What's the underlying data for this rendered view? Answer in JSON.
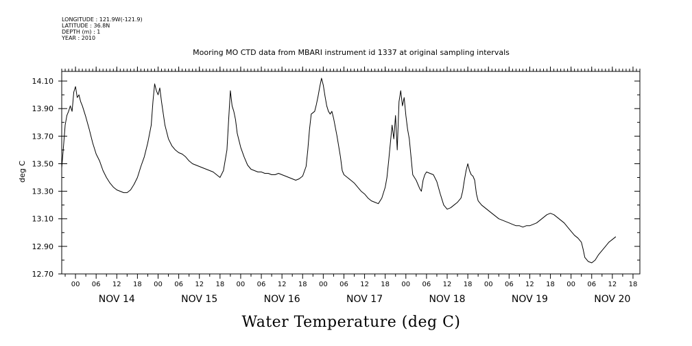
{
  "meta_lines": [
    "LONGITUDE : 121.9W(-121.9)",
    "LATITUDE : 36.8N",
    "DEPTH (m) : 1",
    "YEAR : 2010"
  ],
  "chart_data": {
    "type": "line",
    "title": "Mooring MO CTD data from MBARI instrument id 1337 at original sampling intervals",
    "xlabel": "Water Temperature (deg C)",
    "ylabel": "deg C",
    "ylim": [
      12.7,
      14.17
    ],
    "yticks": [
      12.7,
      12.9,
      13.1,
      13.3,
      13.5,
      13.7,
      13.9,
      14.1
    ],
    "xlim": [
      -4,
      164
    ],
    "x_unit": "hours from NOV 14 00:00",
    "hour_ticks": [
      {
        "x": 0,
        "label": "00"
      },
      {
        "x": 6,
        "label": "06"
      },
      {
        "x": 12,
        "label": "12"
      },
      {
        "x": 18,
        "label": "18"
      },
      {
        "x": 24,
        "label": "00"
      },
      {
        "x": 30,
        "label": "06"
      },
      {
        "x": 36,
        "label": "12"
      },
      {
        "x": 42,
        "label": "18"
      },
      {
        "x": 48,
        "label": "00"
      },
      {
        "x": 54,
        "label": "06"
      },
      {
        "x": 60,
        "label": "12"
      },
      {
        "x": 66,
        "label": "18"
      },
      {
        "x": 72,
        "label": "00"
      },
      {
        "x": 78,
        "label": "06"
      },
      {
        "x": 84,
        "label": "12"
      },
      {
        "x": 90,
        "label": "18"
      },
      {
        "x": 96,
        "label": "00"
      },
      {
        "x": 102,
        "label": "06"
      },
      {
        "x": 108,
        "label": "12"
      },
      {
        "x": 114,
        "label": "18"
      },
      {
        "x": 120,
        "label": "00"
      },
      {
        "x": 126,
        "label": "06"
      },
      {
        "x": 132,
        "label": "12"
      },
      {
        "x": 138,
        "label": "18"
      },
      {
        "x": 144,
        "label": "00"
      },
      {
        "x": 150,
        "label": "06"
      },
      {
        "x": 156,
        "label": "12"
      },
      {
        "x": 162,
        "label": "18"
      }
    ],
    "day_labels": [
      {
        "x": 12,
        "label": "NOV 14"
      },
      {
        "x": 36,
        "label": "NOV 15"
      },
      {
        "x": 60,
        "label": "NOV 16"
      },
      {
        "x": 84,
        "label": "NOV 17"
      },
      {
        "x": 108,
        "label": "NOV 18"
      },
      {
        "x": 132,
        "label": "NOV 19"
      },
      {
        "x": 156,
        "label": "NOV 20"
      }
    ],
    "series": [
      {
        "color": "#000000",
        "points": [
          [
            -4,
            13.47
          ],
          [
            -3.5,
            13.62
          ],
          [
            -3,
            13.78
          ],
          [
            -2.5,
            13.85
          ],
          [
            -2,
            13.88
          ],
          [
            -1.5,
            13.92
          ],
          [
            -1,
            13.88
          ],
          [
            -0.5,
            14.02
          ],
          [
            0,
            14.06
          ],
          [
            0.5,
            13.98
          ],
          [
            1,
            14.0
          ],
          [
            1.5,
            13.95
          ],
          [
            2,
            13.92
          ],
          [
            3,
            13.84
          ],
          [
            4,
            13.75
          ],
          [
            5,
            13.65
          ],
          [
            6,
            13.57
          ],
          [
            7,
            13.52
          ],
          [
            8,
            13.45
          ],
          [
            9,
            13.4
          ],
          [
            10,
            13.36
          ],
          [
            11,
            13.33
          ],
          [
            12,
            13.31
          ],
          [
            13,
            13.3
          ],
          [
            14,
            13.29
          ],
          [
            15,
            13.29
          ],
          [
            16,
            13.31
          ],
          [
            17,
            13.35
          ],
          [
            18,
            13.4
          ],
          [
            19,
            13.48
          ],
          [
            20,
            13.55
          ],
          [
            21,
            13.65
          ],
          [
            22,
            13.78
          ],
          [
            22.5,
            13.95
          ],
          [
            23,
            14.08
          ],
          [
            23.5,
            14.03
          ],
          [
            24,
            14.0
          ],
          [
            24.5,
            14.05
          ],
          [
            25,
            13.95
          ],
          [
            26,
            13.78
          ],
          [
            27,
            13.68
          ],
          [
            28,
            13.63
          ],
          [
            29,
            13.6
          ],
          [
            30,
            13.58
          ],
          [
            31,
            13.57
          ],
          [
            32,
            13.55
          ],
          [
            33,
            13.52
          ],
          [
            34,
            13.5
          ],
          [
            35,
            13.49
          ],
          [
            36,
            13.48
          ],
          [
            37,
            13.47
          ],
          [
            38,
            13.46
          ],
          [
            39,
            13.45
          ],
          [
            40,
            13.44
          ],
          [
            41,
            13.42
          ],
          [
            42,
            13.4
          ],
          [
            43,
            13.45
          ],
          [
            44,
            13.6
          ],
          [
            44.5,
            13.82
          ],
          [
            45,
            14.03
          ],
          [
            45.5,
            13.92
          ],
          [
            46,
            13.88
          ],
          [
            46.5,
            13.82
          ],
          [
            47,
            13.72
          ],
          [
            48,
            13.62
          ],
          [
            49,
            13.55
          ],
          [
            50,
            13.49
          ],
          [
            51,
            13.46
          ],
          [
            52,
            13.45
          ],
          [
            53,
            13.44
          ],
          [
            54,
            13.44
          ],
          [
            55,
            13.43
          ],
          [
            56,
            13.43
          ],
          [
            57,
            13.42
          ],
          [
            58,
            13.42
          ],
          [
            59,
            13.43
          ],
          [
            60,
            13.42
          ],
          [
            61,
            13.41
          ],
          [
            62,
            13.4
          ],
          [
            63,
            13.39
          ],
          [
            64,
            13.38
          ],
          [
            65,
            13.39
          ],
          [
            66,
            13.41
          ],
          [
            67,
            13.48
          ],
          [
            67.5,
            13.6
          ],
          [
            68,
            13.75
          ],
          [
            68.5,
            13.86
          ],
          [
            69,
            13.87
          ],
          [
            69.5,
            13.88
          ],
          [
            70,
            13.93
          ],
          [
            70.5,
            13.99
          ],
          [
            71,
            14.06
          ],
          [
            71.5,
            14.12
          ],
          [
            72,
            14.07
          ],
          [
            72.5,
            13.99
          ],
          [
            73,
            13.92
          ],
          [
            73.5,
            13.88
          ],
          [
            74,
            13.86
          ],
          [
            74.5,
            13.88
          ],
          [
            75,
            13.83
          ],
          [
            76,
            13.7
          ],
          [
            77,
            13.55
          ],
          [
            77.5,
            13.45
          ],
          [
            78,
            13.42
          ],
          [
            79,
            13.4
          ],
          [
            80,
            13.38
          ],
          [
            81,
            13.36
          ],
          [
            82,
            13.33
          ],
          [
            83,
            13.3
          ],
          [
            84,
            13.28
          ],
          [
            85,
            13.25
          ],
          [
            86,
            13.23
          ],
          [
            87,
            13.22
          ],
          [
            88,
            13.21
          ],
          [
            89,
            13.25
          ],
          [
            90,
            13.33
          ],
          [
            90.5,
            13.4
          ],
          [
            91,
            13.52
          ],
          [
            91.5,
            13.65
          ],
          [
            92,
            13.78
          ],
          [
            92.5,
            13.68
          ],
          [
            93,
            13.85
          ],
          [
            93.5,
            13.6
          ],
          [
            94,
            13.95
          ],
          [
            94.5,
            14.03
          ],
          [
            95,
            13.92
          ],
          [
            95.5,
            13.98
          ],
          [
            96,
            13.85
          ],
          [
            96.5,
            13.75
          ],
          [
            97,
            13.68
          ],
          [
            97.5,
            13.55
          ],
          [
            98,
            13.42
          ],
          [
            99,
            13.38
          ],
          [
            100,
            13.32
          ],
          [
            100.5,
            13.3
          ],
          [
            101,
            13.38
          ],
          [
            101.5,
            13.42
          ],
          [
            102,
            13.44
          ],
          [
            103,
            13.43
          ],
          [
            104,
            13.42
          ],
          [
            105,
            13.37
          ],
          [
            106,
            13.28
          ],
          [
            107,
            13.2
          ],
          [
            108,
            13.17
          ],
          [
            109,
            13.18
          ],
          [
            110,
            13.2
          ],
          [
            111,
            13.22
          ],
          [
            112,
            13.25
          ],
          [
            112.5,
            13.3
          ],
          [
            113,
            13.38
          ],
          [
            113.5,
            13.45
          ],
          [
            114,
            13.5
          ],
          [
            114.5,
            13.45
          ],
          [
            115,
            13.42
          ],
          [
            115.5,
            13.41
          ],
          [
            116,
            13.38
          ],
          [
            116.5,
            13.28
          ],
          [
            117,
            13.23
          ],
          [
            118,
            13.2
          ],
          [
            119,
            13.18
          ],
          [
            120,
            13.16
          ],
          [
            121,
            13.14
          ],
          [
            122,
            13.12
          ],
          [
            123,
            13.1
          ],
          [
            124,
            13.09
          ],
          [
            125,
            13.08
          ],
          [
            126,
            13.07
          ],
          [
            127,
            13.06
          ],
          [
            128,
            13.05
          ],
          [
            129,
            13.05
          ],
          [
            130,
            13.04
          ],
          [
            131,
            13.05
          ],
          [
            132,
            13.05
          ],
          [
            133,
            13.06
          ],
          [
            134,
            13.07
          ],
          [
            135,
            13.09
          ],
          [
            136,
            13.11
          ],
          [
            137,
            13.13
          ],
          [
            138,
            13.14
          ],
          [
            139,
            13.13
          ],
          [
            140,
            13.11
          ],
          [
            141,
            13.09
          ],
          [
            142,
            13.07
          ],
          [
            143,
            13.04
          ],
          [
            144,
            13.01
          ],
          [
            145,
            12.98
          ],
          [
            146,
            12.96
          ],
          [
            147,
            12.93
          ],
          [
            147.5,
            12.88
          ],
          [
            148,
            12.82
          ],
          [
            149,
            12.79
          ],
          [
            150,
            12.78
          ],
          [
            151,
            12.8
          ],
          [
            152,
            12.84
          ],
          [
            153,
            12.87
          ],
          [
            154,
            12.9
          ],
          [
            155,
            12.93
          ],
          [
            156,
            12.95
          ],
          [
            157,
            12.97
          ]
        ]
      }
    ]
  }
}
